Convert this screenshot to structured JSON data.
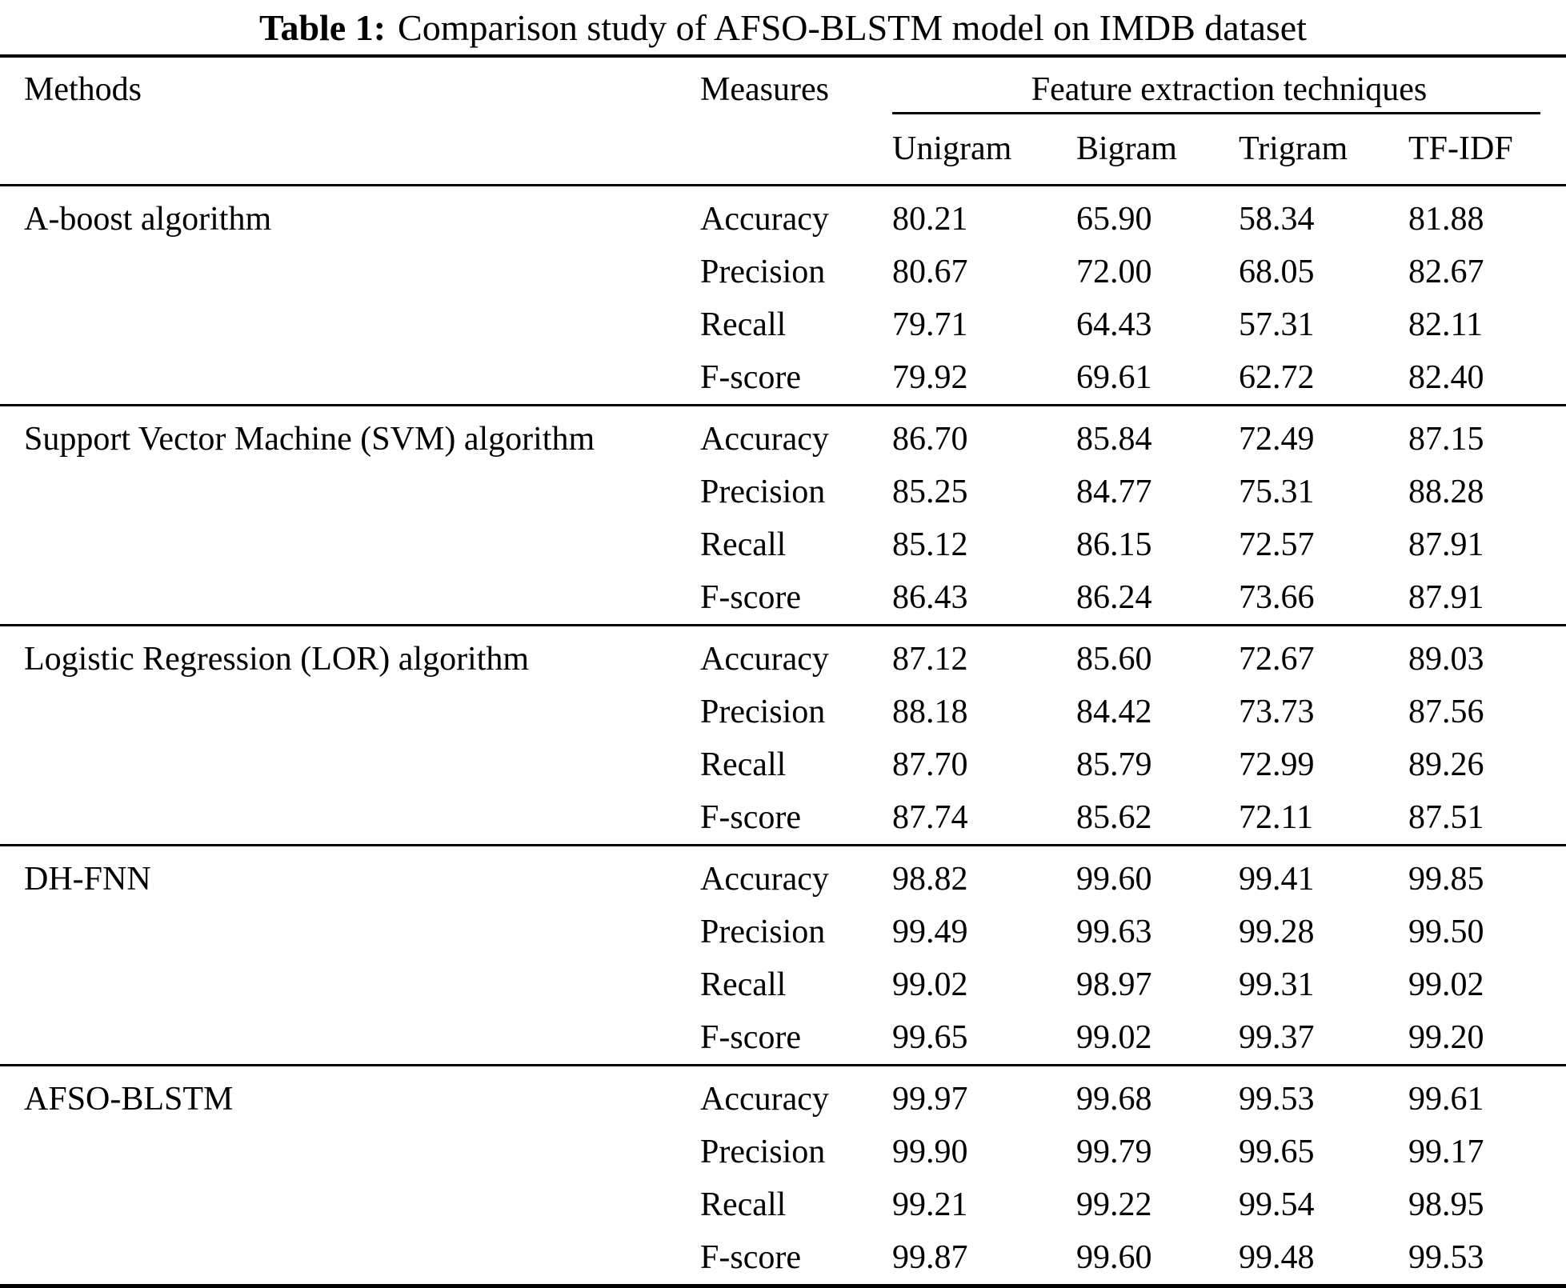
{
  "caption": {
    "label": "Table 1:",
    "text": "Comparison study of AFSO-BLSTM model on IMDB dataset"
  },
  "table": {
    "col_methods": "Methods",
    "col_measures": "Measures",
    "col_feature_group": "Feature extraction techniques",
    "feature_columns": [
      "Unigram",
      "Bigram",
      "Trigram",
      "TF-IDF"
    ],
    "groups": [
      {
        "method": "A-boost algorithm",
        "rows": [
          {
            "measure": "Accuracy",
            "values": [
              "80.21",
              "65.90",
              "58.34",
              "81.88"
            ]
          },
          {
            "measure": "Precision",
            "values": [
              "80.67",
              "72.00",
              "68.05",
              "82.67"
            ]
          },
          {
            "measure": "Recall",
            "values": [
              "79.71",
              "64.43",
              "57.31",
              "82.11"
            ]
          },
          {
            "measure": "F-score",
            "values": [
              "79.92",
              "69.61",
              "62.72",
              "82.40"
            ]
          }
        ]
      },
      {
        "method": "Support Vector Machine (SVM) algorithm",
        "rows": [
          {
            "measure": "Accuracy",
            "values": [
              "86.70",
              "85.84",
              "72.49",
              "87.15"
            ]
          },
          {
            "measure": "Precision",
            "values": [
              "85.25",
              "84.77",
              "75.31",
              "88.28"
            ]
          },
          {
            "measure": "Recall",
            "values": [
              "85.12",
              "86.15",
              "72.57",
              "87.91"
            ]
          },
          {
            "measure": "F-score",
            "values": [
              "86.43",
              "86.24",
              "73.66",
              "87.91"
            ]
          }
        ]
      },
      {
        "method": "Logistic Regression (LOR) algorithm",
        "rows": [
          {
            "measure": "Accuracy",
            "values": [
              "87.12",
              "85.60",
              "72.67",
              "89.03"
            ]
          },
          {
            "measure": "Precision",
            "values": [
              "88.18",
              "84.42",
              "73.73",
              "87.56"
            ]
          },
          {
            "measure": "Recall",
            "values": [
              "87.70",
              "85.79",
              "72.99",
              "89.26"
            ]
          },
          {
            "measure": "F-score",
            "values": [
              "87.74",
              "85.62",
              "72.11",
              "87.51"
            ]
          }
        ]
      },
      {
        "method": "DH-FNN",
        "rows": [
          {
            "measure": "Accuracy",
            "values": [
              "98.82",
              "99.60",
              "99.41",
              "99.85"
            ]
          },
          {
            "measure": "Precision",
            "values": [
              "99.49",
              "99.63",
              "99.28",
              "99.50"
            ]
          },
          {
            "measure": "Recall",
            "values": [
              "99.02",
              "98.97",
              "99.31",
              "99.02"
            ]
          },
          {
            "measure": "F-score",
            "values": [
              "99.65",
              "99.02",
              "99.37",
              "99.20"
            ]
          }
        ]
      },
      {
        "method": "AFSO-BLSTM",
        "rows": [
          {
            "measure": "Accuracy",
            "values": [
              "99.97",
              "99.68",
              "99.53",
              "99.61"
            ]
          },
          {
            "measure": "Precision",
            "values": [
              "99.90",
              "99.79",
              "99.65",
              "99.17"
            ]
          },
          {
            "measure": "Recall",
            "values": [
              "99.21",
              "99.22",
              "99.54",
              "98.95"
            ]
          },
          {
            "measure": "F-score",
            "values": [
              "99.87",
              "99.60",
              "99.48",
              "99.53"
            ]
          }
        ]
      }
    ]
  }
}
